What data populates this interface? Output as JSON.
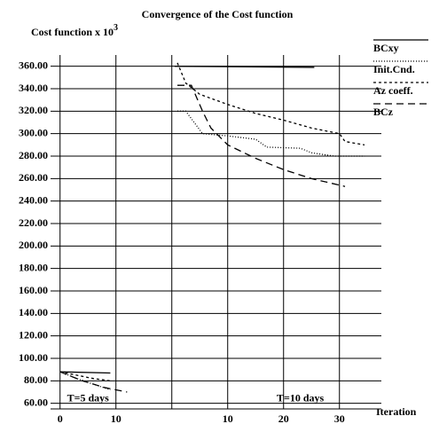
{
  "chart_data": {
    "type": "line",
    "title": "Convergence of the Cost function",
    "ylabel": "Cost function x 10",
    "ylabel_exponent": "3",
    "xlabel": "Iteration",
    "annotations": [
      {
        "text": "T=5 days",
        "x": 5,
        "y": 64
      },
      {
        "text": "T=10 days",
        "x": 43,
        "y": 64
      }
    ],
    "xlim": [
      -1.7,
      57.5
    ],
    "ylim": [
      55,
      370
    ],
    "xticks": [
      {
        "value": 0,
        "label": "0"
      },
      {
        "value": 10,
        "label": "10"
      },
      {
        "value": 30,
        "label": "10"
      },
      {
        "value": 40,
        "label": "20"
      },
      {
        "value": 50,
        "label": "30"
      }
    ],
    "xgrid": [
      0,
      10,
      20,
      30,
      40,
      50
    ],
    "yticks": [
      {
        "value": 60,
        "label": "60.00"
      },
      {
        "value": 80,
        "label": "80.00"
      },
      {
        "value": 100,
        "label": "100.00"
      },
      {
        "value": 120,
        "label": "120.00"
      },
      {
        "value": 140,
        "label": "140.00"
      },
      {
        "value": 160,
        "label": "160.00"
      },
      {
        "value": 180,
        "label": "180.00"
      },
      {
        "value": 200,
        "label": "200.00"
      },
      {
        "value": 220,
        "label": "220.00"
      },
      {
        "value": 240,
        "label": "240.00"
      },
      {
        "value": 260,
        "label": "260.00"
      },
      {
        "value": 280,
        "label": "280.00"
      },
      {
        "value": 300,
        "label": "300.00"
      },
      {
        "value": 320,
        "label": "320.00"
      },
      {
        "value": 340,
        "label": "340.00"
      },
      {
        "value": 360,
        "label": "360.00"
      }
    ],
    "grid": true,
    "legend": "upper right",
    "series": [
      {
        "name": "BCxy",
        "color": "#000000",
        "dash": "none",
        "x": [
          0,
          9,
          null,
          20.5,
          45.5
        ],
        "values": [
          88,
          87,
          null,
          360,
          359
        ]
      },
      {
        "name": "Init.Cnd.",
        "color": "#000000",
        "dash": "1 2",
        "x": [
          0,
          3,
          6,
          9,
          null,
          21,
          22.5,
          25.5,
          30,
          35,
          37,
          43,
          45,
          49,
          54.5
        ],
        "values": [
          88,
          82,
          77,
          72,
          null,
          320,
          320,
          300,
          298,
          295,
          288,
          287,
          283,
          280,
          280
        ]
      },
      {
        "name": "Az coeff.",
        "color": "#000000",
        "dash": "3 3",
        "x": [
          0,
          3,
          6,
          9,
          null,
          21,
          22.5,
          25,
          30,
          35,
          40,
          45,
          50,
          51,
          54.5
        ],
        "values": [
          88,
          85,
          82,
          80,
          null,
          363,
          345,
          335,
          326,
          318,
          312,
          305,
          300,
          293,
          290
        ]
      },
      {
        "name": "BCz",
        "color": "#000000",
        "dash": "8 5",
        "x": [
          0,
          4,
          8,
          12,
          null,
          21,
          23.5,
          25.5,
          27,
          30,
          35,
          40,
          45,
          51
        ],
        "values": [
          88,
          80,
          74,
          70,
          null,
          343,
          343,
          320,
          305,
          290,
          278,
          268,
          260,
          253
        ]
      }
    ]
  }
}
